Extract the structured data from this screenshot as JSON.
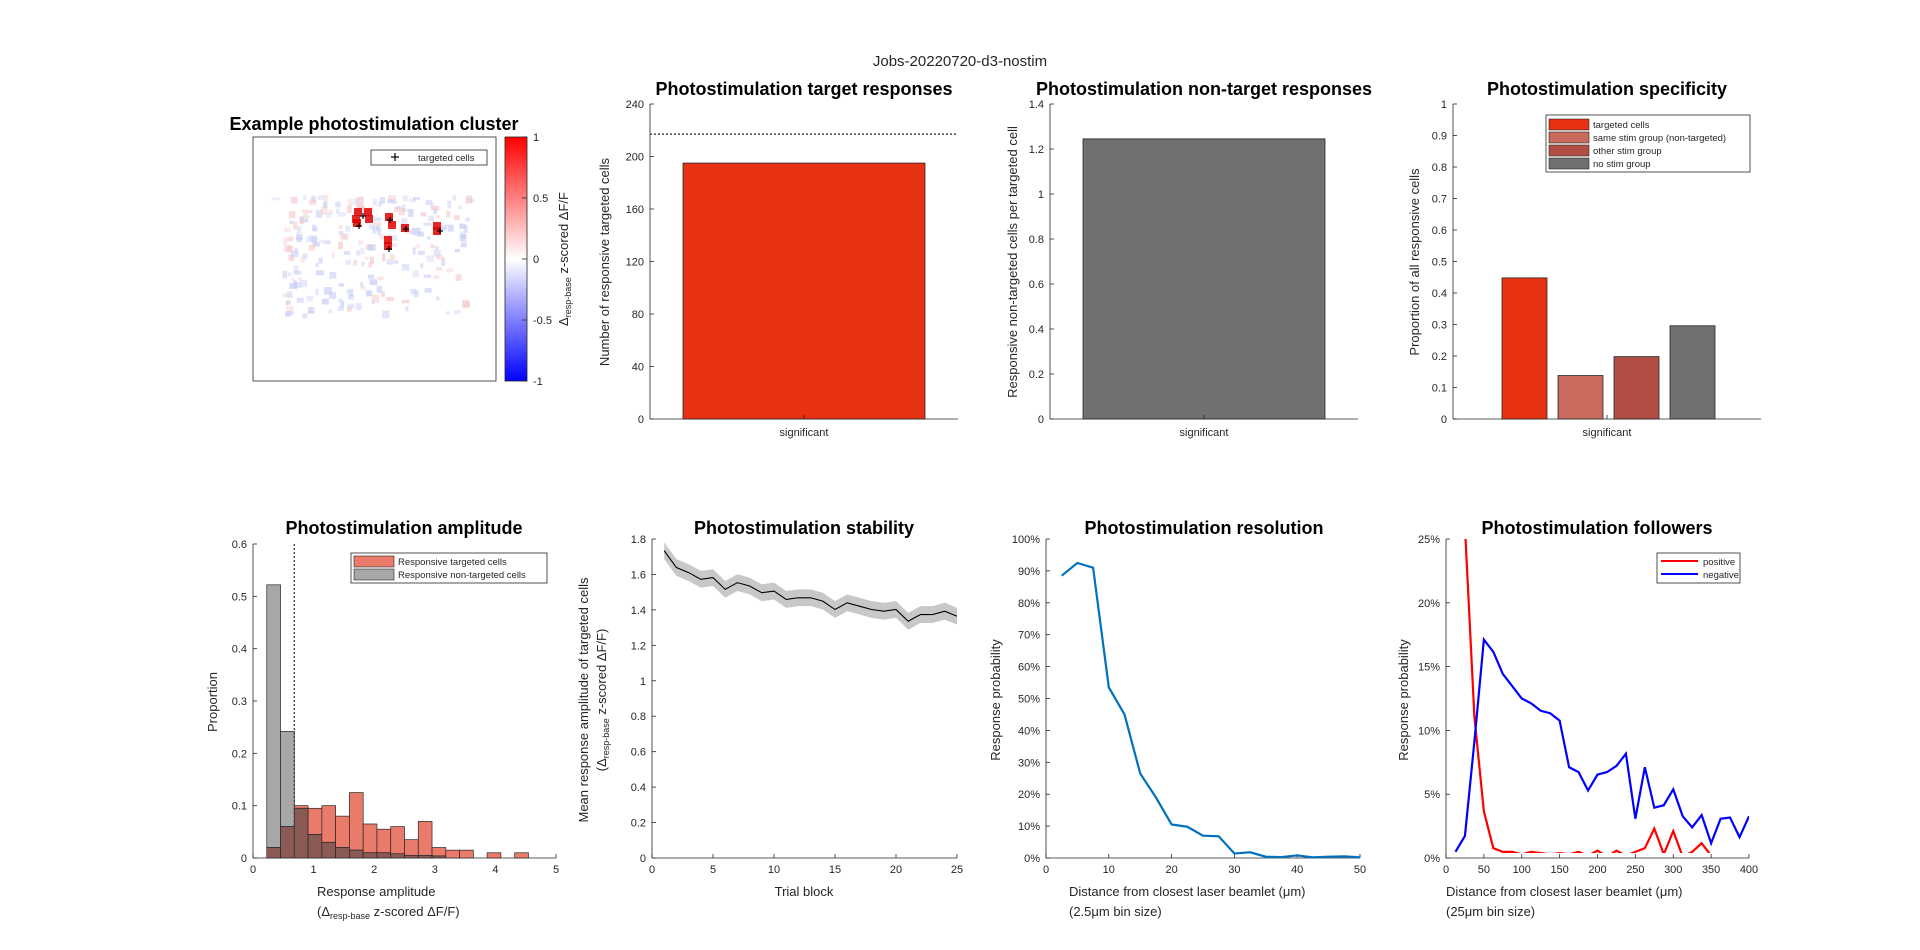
{
  "figure_title": "Jobs-20220720-d3-nostim",
  "colors": {
    "targeted": "#e63212",
    "same_group": "#c86b5c",
    "other_group": "#b04e44",
    "no_group": "#717071",
    "hist_red": "#ea7b6a",
    "hist_gray": "#a7a7a7",
    "hist_overlap": "#8c5a55",
    "res_line": "#0072bd",
    "pos_line": "#ff0000",
    "neg_line": "#0000ff"
  },
  "panel1": {
    "title": "Example photostimulation cluster",
    "legend": "targeted cells",
    "colorbar_ticks": [
      "1",
      "0.5",
      "0",
      "-0.5",
      "-1"
    ],
    "colorbar_label_parts": [
      "Δ",
      "resp-base",
      " z-scored ΔF/F"
    ]
  },
  "chart_data": [
    {
      "id": "target_responses",
      "type": "bar",
      "title": "Photostimulation target responses",
      "ylabel": "Number of responsive targeted cells",
      "categories": [
        "significant"
      ],
      "values": [
        195
      ],
      "reference_line": 217,
      "ylim": [
        0,
        240
      ],
      "yticks": [
        "0",
        "40",
        "80",
        "120",
        "160",
        "200",
        "240"
      ]
    },
    {
      "id": "nontarget_responses",
      "type": "bar",
      "title": "Photostimulation non-target responses",
      "ylabel": "Responsive non-targeted cells per targeted cell",
      "categories": [
        "significant"
      ],
      "values": [
        1.245
      ],
      "ylim": [
        0,
        1.4
      ],
      "yticks": [
        "0",
        "0.2",
        "0.4",
        "0.6",
        "0.8",
        "1",
        "1.2",
        "1.4"
      ]
    },
    {
      "id": "specificity",
      "type": "bar",
      "title": "Photostimulation specificity",
      "ylabel": "Proportion of all responsive cells",
      "categories": [
        "significant"
      ],
      "series": [
        {
          "name": "targeted cells",
          "values": [
            0.448
          ]
        },
        {
          "name": "same stim group (non-targeted)",
          "values": [
            0.138
          ]
        },
        {
          "name": "other stim group",
          "values": [
            0.198
          ]
        },
        {
          "name": "no stim group",
          "values": [
            0.296
          ]
        }
      ],
      "ylim": [
        0,
        1
      ],
      "yticks": [
        "0",
        "0.1",
        "0.2",
        "0.3",
        "0.4",
        "0.5",
        "0.6",
        "0.7",
        "0.8",
        "0.9",
        "1"
      ],
      "legend_position": "top-right"
    },
    {
      "id": "amplitude",
      "type": "bar",
      "title": "Photostimulation amplitude",
      "ylabel": "Proportion",
      "xlabel_line1": "Response amplitude",
      "xlabel_line2_parts": [
        "(Δ",
        "resp-base",
        " z-scored ΔF/F)"
      ],
      "bin_width": 0.25,
      "bin_starts": [
        0,
        0.25,
        0.5,
        0.75,
        1.0,
        1.25,
        1.5,
        1.75,
        2.0,
        2.25,
        2.5,
        2.75,
        3.0,
        3.25,
        3.5,
        3.75,
        4.0,
        4.25,
        4.5,
        4.75
      ],
      "series": [
        {
          "name": "Responsive targeted cells",
          "values": [
            0.02,
            0.06,
            0.1,
            0.095,
            0.1,
            0.08,
            0.125,
            0.065,
            0.055,
            0.06,
            0.035,
            0.07,
            0.02,
            0.015,
            0.015,
            0.0,
            0.01,
            0.0,
            0.01,
            0.0
          ]
        },
        {
          "name": "Responsive non-targeted cells",
          "values": [
            0.522,
            0.242,
            0.095,
            0.045,
            0.03,
            0.02,
            0.015,
            0.01,
            0.01,
            0.008,
            0.005,
            0.005,
            0.004,
            0.0,
            0.0,
            0.0,
            0.0,
            0.0,
            0.0,
            0.0
          ]
        }
      ],
      "threshold_line": 0.5,
      "xlim": [
        -0.25,
        5.25
      ],
      "ylim": [
        0,
        0.6
      ],
      "xticks": [
        "0",
        "1",
        "2",
        "3",
        "4",
        "5"
      ],
      "yticks": [
        "0",
        "0.1",
        "0.2",
        "0.3",
        "0.4",
        "0.5",
        "0.6"
      ],
      "legend_position": "top-right"
    },
    {
      "id": "stability",
      "type": "line",
      "title": "Photostimulation stability",
      "xlabel": "Trial block",
      "ylabel_line1": "Mean response amplitude of targeted cells",
      "ylabel_line2_parts": [
        "(Δ",
        "resp-base",
        " z-scored ΔF/F)"
      ],
      "x": [
        1,
        2,
        3,
        4,
        5,
        6,
        7,
        8,
        9,
        10,
        11,
        12,
        13,
        14,
        15,
        16,
        17,
        18,
        19,
        20,
        21,
        22,
        23,
        24,
        25
      ],
      "y": [
        1.83,
        1.73,
        1.7,
        1.66,
        1.67,
        1.6,
        1.64,
        1.62,
        1.58,
        1.59,
        1.54,
        1.55,
        1.55,
        1.53,
        1.48,
        1.52,
        1.5,
        1.48,
        1.47,
        1.48,
        1.41,
        1.45,
        1.45,
        1.47,
        1.44
      ],
      "band": 0.05,
      "xlim": [
        0,
        25
      ],
      "ylim": [
        0,
        1.9
      ],
      "xticks": [
        "0",
        "5",
        "10",
        "15",
        "20",
        "25"
      ],
      "yticks": [
        "0",
        "0.2",
        "0.4",
        "0.6",
        "0.8",
        "1",
        "1.2",
        "1.4",
        "1.6",
        "1.8"
      ]
    },
    {
      "id": "resolution",
      "type": "line",
      "title": "Photostimulation resolution",
      "ylabel": "Response probability",
      "xlabel_line1": "Distance from closest laser beamlet (μm)",
      "xlabel_line2": "(2.5μm bin size)",
      "x": [
        2.5,
        5,
        7.5,
        10,
        12.5,
        15,
        17.5,
        20,
        22.5,
        25,
        27.5,
        30,
        32.5,
        35,
        37.5,
        40,
        42.5,
        45,
        47.5,
        50
      ],
      "y": [
        88.5,
        92.5,
        91,
        53.5,
        45,
        26.5,
        19,
        10.5,
        9.8,
        7,
        6.8,
        1.4,
        1.8,
        0.4,
        0.3,
        0.8,
        0.2,
        0.4,
        0.5,
        0.2
      ],
      "xlim": [
        0,
        50
      ],
      "ylim": [
        0,
        100
      ],
      "xticks": [
        "0",
        "10",
        "20",
        "30",
        "40",
        "50"
      ],
      "yticks": [
        "0%",
        "10%",
        "20%",
        "30%",
        "40%",
        "50%",
        "60%",
        "70%",
        "80%",
        "90%",
        "100%"
      ]
    },
    {
      "id": "followers",
      "type": "line",
      "title": "Photostimulation followers",
      "ylabel": "Response probability",
      "xlabel_line1": "Distance from closest laser beamlet (μm)",
      "xlabel_line2": "(25μm bin size)",
      "x": [
        12.5,
        25,
        37.5,
        50,
        62.5,
        75,
        87.5,
        100,
        112.5,
        125,
        137.5,
        150,
        162.5,
        175,
        187.5,
        200,
        212.5,
        225,
        237.5,
        250,
        262.5,
        275,
        287.5,
        300,
        312.5,
        325,
        337.5,
        350,
        362.5,
        375,
        387.5,
        400
      ],
      "series": [
        {
          "name": "positive",
          "values": [
            35,
            27,
            11.5,
            3.8,
            0.8,
            0.5,
            0.5,
            0.3,
            0.5,
            0.4,
            0.3,
            0.4,
            0.3,
            0.5,
            0.2,
            0.6,
            0.1,
            0.6,
            0.2,
            0.5,
            0.8,
            2.4,
            0.3,
            2.2,
            0.1,
            0.5,
            1.2,
            0.2,
            0.1,
            0.1,
            0.1,
            0.0
          ]
        },
        {
          "name": "negative",
          "values": [
            0.5,
            1.8,
            9.5,
            17.8,
            16.8,
            15,
            14,
            13,
            12.6,
            12,
            11.8,
            11.2,
            7.4,
            7,
            5.5,
            6.8,
            7,
            7.5,
            8.5,
            3.2,
            7.4,
            4.1,
            4.3,
            5.6,
            3.4,
            2.5,
            3.5,
            1.2,
            3.2,
            3.3,
            1.7,
            3.4
          ]
        }
      ],
      "xlim": [
        0,
        400
      ],
      "ylim": [
        0,
        26
      ],
      "xticks": [
        "0",
        "50",
        "100",
        "150",
        "200",
        "250",
        "300",
        "350",
        "400"
      ],
      "yticks": [
        "0%",
        "5%",
        "10%",
        "15%",
        "20%",
        "25%"
      ],
      "legend_position": "top-right"
    }
  ]
}
